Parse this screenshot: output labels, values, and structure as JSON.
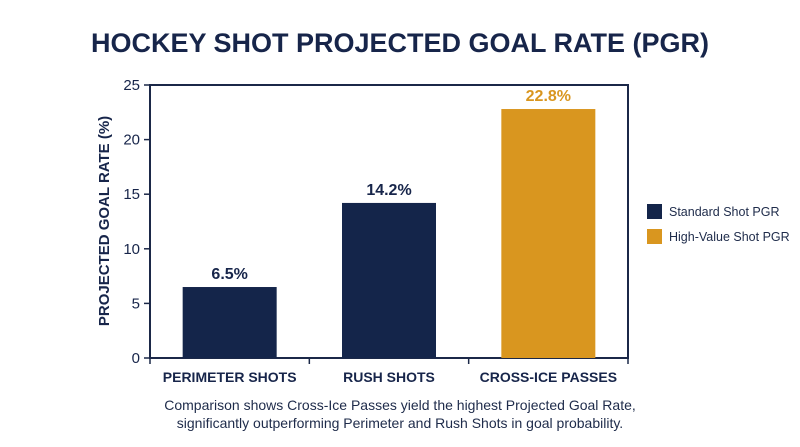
{
  "chart_data": {
    "type": "bar",
    "title": "HOCKEY SHOT PROJECTED GOAL RATE (PGR)",
    "ylabel": "PROJECTED GOAL RATE (%)",
    "xlabel": "",
    "ylim": [
      0,
      25
    ],
    "yticks": [
      0,
      5,
      10,
      15,
      20,
      25
    ],
    "categories": [
      "PERIMETER SHOTS",
      "RUSH SHOTS",
      "CROSS-ICE PASSES"
    ],
    "values": [
      6.5,
      14.2,
      22.8
    ],
    "value_labels": [
      "6.5%",
      "14.2%",
      "22.8%"
    ],
    "bar_series": [
      "Standard Shot PGR",
      "Standard Shot PGR",
      "High-Value Shot PGR"
    ],
    "series": [
      {
        "name": "Standard Shot PGR",
        "color": "#14254a"
      },
      {
        "name": "High-Value Shot PGR",
        "color": "#d9961f"
      }
    ],
    "legend_position": "right",
    "grid": false
  },
  "caption": {
    "line1": "Comparison shows Cross-Ice Passes yield the highest Projected Goal Rate,",
    "line2": "significantly outperforming Perimeter and Rush Shots in goal probability."
  }
}
